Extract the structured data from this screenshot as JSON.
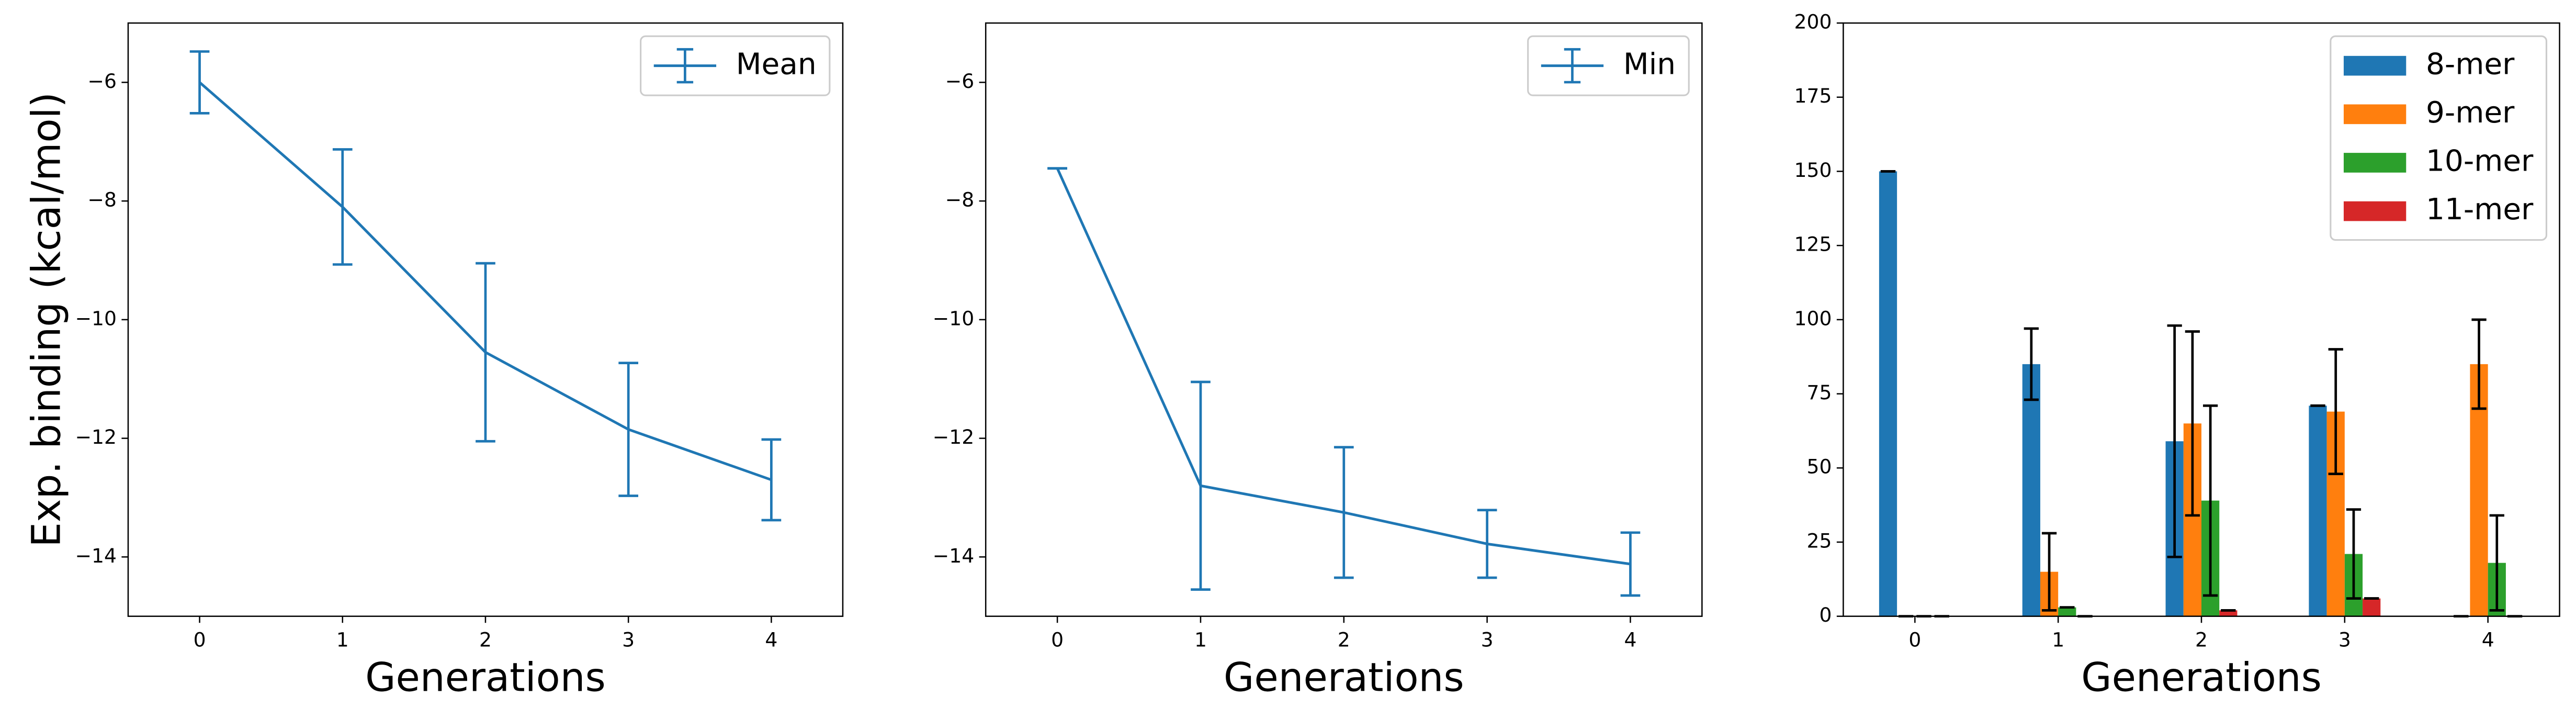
{
  "chart_data": [
    {
      "type": "line",
      "xlabel": "Generations",
      "ylabel": "Exp. binding (kcal/mol)",
      "x": [
        0,
        1,
        2,
        3,
        4
      ],
      "series": [
        {
          "name": "Mean",
          "color": "#1f77b4",
          "values": [
            -6.0,
            -8.1,
            -10.55,
            -11.85,
            -12.7
          ],
          "errors": [
            0.52,
            0.97,
            1.5,
            1.12,
            0.68
          ]
        }
      ],
      "xlim": [
        -0.5,
        4.5
      ],
      "xticks": [
        0,
        1,
        2,
        3,
        4
      ],
      "ylim": [
        -15,
        -5
      ],
      "yticks": [
        {
          "value": -14,
          "label": "−14"
        },
        {
          "value": -12,
          "label": "−12"
        },
        {
          "value": -10,
          "label": "−10"
        },
        {
          "value": -8,
          "label": "−8"
        },
        {
          "value": -6,
          "label": "−6"
        }
      ],
      "legend": "upper right"
    },
    {
      "type": "line",
      "xlabel": "Generations",
      "x": [
        0,
        1,
        2,
        3,
        4
      ],
      "series": [
        {
          "name": "Min",
          "color": "#1f77b4",
          "values": [
            -7.45,
            -12.8,
            -13.25,
            -13.78,
            -14.12
          ],
          "errors": [
            0,
            1.75,
            1.1,
            0.57,
            0.53
          ]
        }
      ],
      "xlim": [
        -0.5,
        4.5
      ],
      "xticks": [
        0,
        1,
        2,
        3,
        4
      ],
      "ylim": [
        -15,
        -5
      ],
      "yticks": [
        {
          "value": -14,
          "label": "−14"
        },
        {
          "value": -12,
          "label": "−12"
        },
        {
          "value": -10,
          "label": "−10"
        },
        {
          "value": -8,
          "label": "−8"
        },
        {
          "value": -6,
          "label": "−6"
        }
      ],
      "legend": "upper right"
    },
    {
      "type": "bar",
      "xlabel": "Generations",
      "x": [
        0,
        1,
        2,
        3,
        4
      ],
      "series": [
        {
          "name": "8-mer",
          "color": "#1f77b4",
          "values": [
            150,
            85,
            59,
            71,
            0
          ],
          "errors": [
            0,
            12,
            39,
            0,
            0
          ]
        },
        {
          "name": "9-mer",
          "color": "#ff7f0e",
          "values": [
            0,
            15,
            65,
            69,
            85
          ],
          "errors": [
            0,
            13,
            31,
            21,
            15
          ]
        },
        {
          "name": "10-mer",
          "color": "#2ca02c",
          "values": [
            0,
            3,
            39,
            21,
            18
          ],
          "errors": [
            0,
            0,
            32,
            15,
            16
          ]
        },
        {
          "name": "11-mer",
          "color": "#d62728",
          "values": [
            0,
            0,
            2,
            6,
            0
          ],
          "errors": [
            0,
            0,
            0,
            0,
            0
          ]
        }
      ],
      "xlim": [
        -0.5,
        4.5
      ],
      "xticks": [
        0,
        1,
        2,
        3,
        4
      ],
      "ylim": [
        0,
        200
      ],
      "yticks": [
        0,
        25,
        50,
        75,
        100,
        125,
        150,
        175,
        200
      ],
      "legend": "upper right"
    }
  ]
}
